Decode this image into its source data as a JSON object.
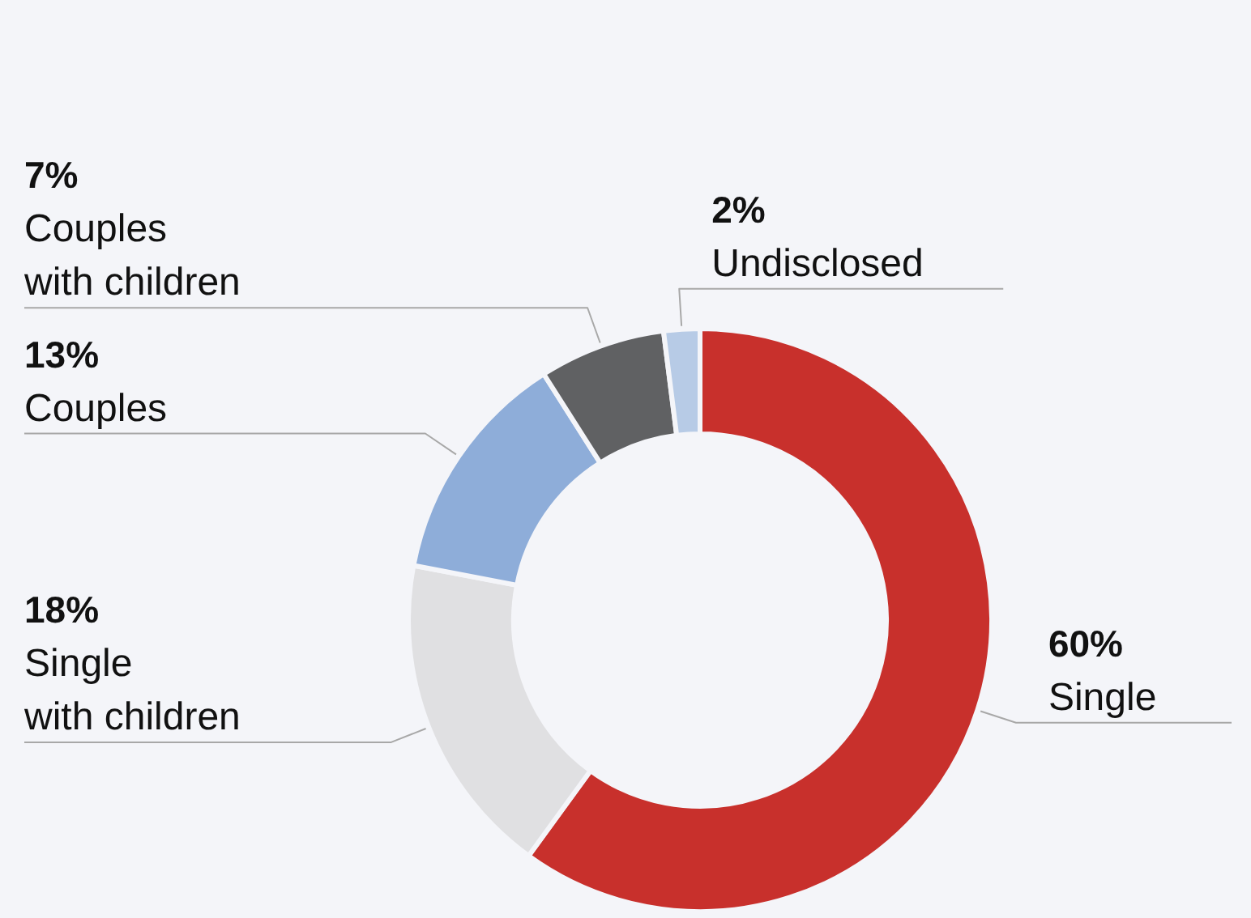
{
  "chart_data": {
    "type": "donut",
    "categories": [
      "Single",
      "Single with children",
      "Couples",
      "Couples with children",
      "Undisclosed"
    ],
    "values": [
      60,
      18,
      13,
      7,
      2
    ],
    "colors": [
      "#c8302c",
      "#e0e0e2",
      "#8eadd9",
      "#606163",
      "#b7cbe6"
    ],
    "value_labels": [
      "60%",
      "18%",
      "13%",
      "7%",
      "2%"
    ]
  }
}
